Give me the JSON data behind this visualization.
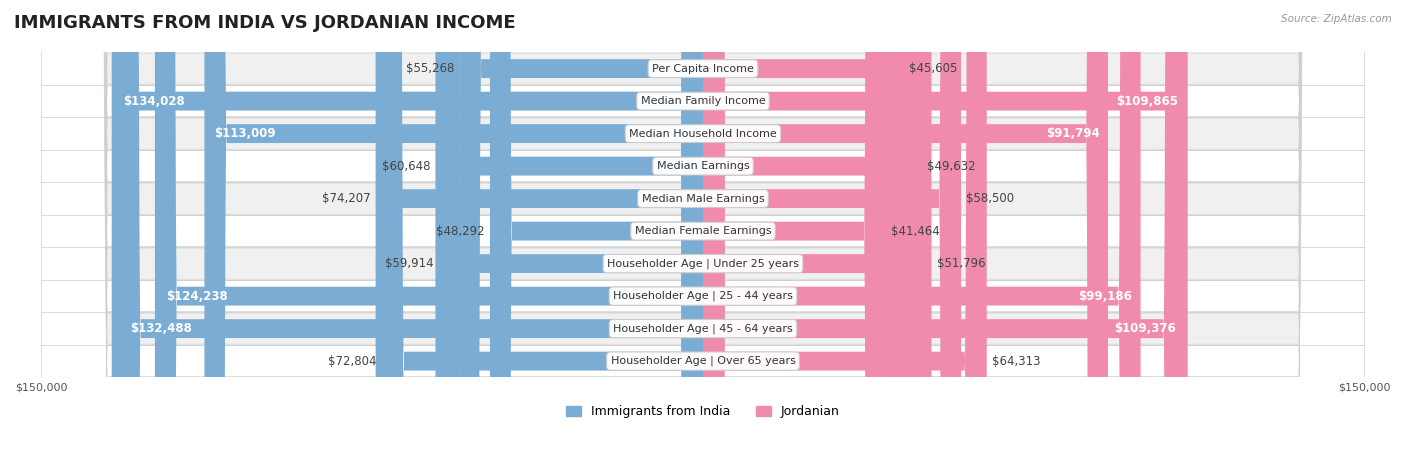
{
  "title": "IMMIGRANTS FROM INDIA VS JORDANIAN INCOME",
  "source": "Source: ZipAtlas.com",
  "categories": [
    "Per Capita Income",
    "Median Family Income",
    "Median Household Income",
    "Median Earnings",
    "Median Male Earnings",
    "Median Female Earnings",
    "Householder Age | Under 25 years",
    "Householder Age | 25 - 44 years",
    "Householder Age | 45 - 64 years",
    "Householder Age | Over 65 years"
  ],
  "india_values": [
    55268,
    134028,
    113009,
    60648,
    74207,
    48292,
    59914,
    124238,
    132488,
    72804
  ],
  "jordan_values": [
    45605,
    109865,
    91794,
    49632,
    58500,
    41464,
    51796,
    99186,
    109376,
    64313
  ],
  "india_labels": [
    "$55,268",
    "$134,028",
    "$113,009",
    "$60,648",
    "$74,207",
    "$48,292",
    "$59,914",
    "$124,238",
    "$132,488",
    "$72,804"
  ],
  "jordan_labels": [
    "$45,605",
    "$109,865",
    "$91,794",
    "$49,632",
    "$58,500",
    "$41,464",
    "$51,796",
    "$99,186",
    "$109,376",
    "$64,313"
  ],
  "india_color": "#7bacd4",
  "jordan_color": "#f08bae",
  "max_value": 150000,
  "bar_height": 0.58,
  "row_bg_light": "#f0f0f0",
  "row_bg_dark": "#e2e6ea",
  "background_color": "#ffffff",
  "title_fontsize": 13,
  "label_fontsize": 8.5,
  "category_fontsize": 8.0,
  "legend_fontsize": 9,
  "axis_label_fontsize": 8,
  "india_threshold": 90000,
  "jordan_threshold": 80000
}
